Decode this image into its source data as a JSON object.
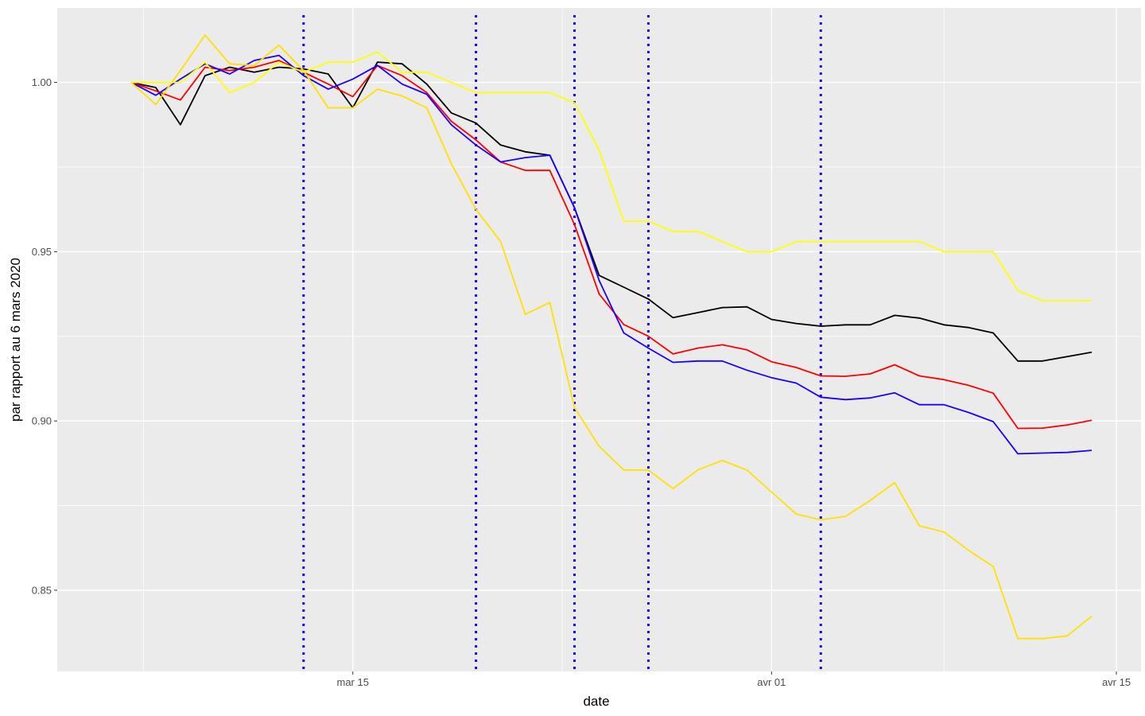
{
  "chart_data": {
    "type": "line",
    "title": "",
    "xlabel": "date",
    "ylabel": "par rapport au 6 mars 2020",
    "x_start": "2020-03-06",
    "xlim": [
      "2020-03-03",
      "2020-04-16"
    ],
    "ylim": [
      0.826,
      1.022
    ],
    "x_ticks": [
      {
        "date": "2020-03-15",
        "label": "mar 15"
      },
      {
        "date": "2020-04-01",
        "label": "avr 01"
      },
      {
        "date": "2020-04-15",
        "label": "avr 15"
      }
    ],
    "y_ticks": [
      {
        "value": 0.85,
        "label": "0.85"
      },
      {
        "value": 0.9,
        "label": "0.90"
      },
      {
        "value": 0.95,
        "label": "0.95"
      },
      {
        "value": 1.0,
        "label": "1.00"
      }
    ],
    "grid": true,
    "legend": "none",
    "background_color": "#ebebeb",
    "grid_color": "#ffffff",
    "vlines": {
      "color": "#1a00ff",
      "style": "dotted",
      "dates": [
        "2020-03-13",
        "2020-03-20",
        "2020-03-24",
        "2020-03-27",
        "2020-04-03"
      ]
    },
    "series": [
      {
        "color": "#000000",
        "x": [
          "2020-03-06",
          "2020-03-07",
          "2020-03-08",
          "2020-03-09",
          "2020-03-10",
          "2020-03-11",
          "2020-03-12",
          "2020-03-13",
          "2020-03-14",
          "2020-03-15",
          "2020-03-16",
          "2020-03-17",
          "2020-03-18",
          "2020-03-19",
          "2020-03-20",
          "2020-03-21",
          "2020-03-22",
          "2020-03-23",
          "2020-03-24",
          "2020-03-25",
          "2020-03-26",
          "2020-03-27",
          "2020-03-28",
          "2020-03-29",
          "2020-03-30",
          "2020-03-31",
          "2020-04-01",
          "2020-04-02",
          "2020-04-03",
          "2020-04-04",
          "2020-04-05",
          "2020-04-06",
          "2020-04-07",
          "2020-04-08",
          "2020-04-09",
          "2020-04-10",
          "2020-04-11",
          "2020-04-12",
          "2020-04-13",
          "2020-04-14"
        ],
        "values": [
          1.0,
          0.9985,
          0.9875,
          1.002,
          1.0045,
          1.003,
          1.0045,
          1.004,
          1.0025,
          0.9925,
          1.006,
          1.0055,
          0.9995,
          0.991,
          0.988,
          0.9815,
          0.9795,
          0.9785,
          0.963,
          0.943,
          0.9395,
          0.936,
          0.9305,
          0.932,
          0.9335,
          0.9337,
          0.93,
          0.9288,
          0.928,
          0.9284,
          0.9284,
          0.9312,
          0.9304,
          0.9284,
          0.9276,
          0.926,
          0.9177,
          0.9177,
          0.919,
          0.9203
        ]
      },
      {
        "color": "#ff0000",
        "x": [
          "2020-03-06",
          "2020-03-07",
          "2020-03-08",
          "2020-03-09",
          "2020-03-10",
          "2020-03-11",
          "2020-03-12",
          "2020-03-13",
          "2020-03-14",
          "2020-03-15",
          "2020-03-16",
          "2020-03-17",
          "2020-03-18",
          "2020-03-19",
          "2020-03-20",
          "2020-03-21",
          "2020-03-22",
          "2020-03-23",
          "2020-03-24",
          "2020-03-25",
          "2020-03-26",
          "2020-03-27",
          "2020-03-28",
          "2020-03-29",
          "2020-03-30",
          "2020-03-31",
          "2020-04-01",
          "2020-04-02",
          "2020-04-03",
          "2020-04-04",
          "2020-04-05",
          "2020-04-06",
          "2020-04-07",
          "2020-04-08",
          "2020-04-09",
          "2020-04-10",
          "2020-04-11",
          "2020-04-12",
          "2020-04-13",
          "2020-04-14"
        ],
        "values": [
          1.0,
          0.9975,
          0.9948,
          1.0045,
          1.0035,
          1.0045,
          1.0065,
          1.003,
          0.9995,
          0.9958,
          1.005,
          1.002,
          0.997,
          0.9885,
          0.983,
          0.9765,
          0.974,
          0.974,
          0.958,
          0.9375,
          0.9285,
          0.925,
          0.9198,
          0.9215,
          0.9225,
          0.921,
          0.9175,
          0.9158,
          0.9133,
          0.9132,
          0.9139,
          0.9166,
          0.9133,
          0.9122,
          0.9105,
          0.9082,
          0.8978,
          0.8979,
          0.8988,
          0.9002
        ]
      },
      {
        "color": "#1a00ff",
        "x": [
          "2020-03-06",
          "2020-03-07",
          "2020-03-08",
          "2020-03-09",
          "2020-03-10",
          "2020-03-11",
          "2020-03-12",
          "2020-03-13",
          "2020-03-14",
          "2020-03-15",
          "2020-03-16",
          "2020-03-17",
          "2020-03-18",
          "2020-03-19",
          "2020-03-20",
          "2020-03-21",
          "2020-03-22",
          "2020-03-23",
          "2020-03-24",
          "2020-03-25",
          "2020-03-26",
          "2020-03-27",
          "2020-03-28",
          "2020-03-29",
          "2020-03-30",
          "2020-03-31",
          "2020-04-01",
          "2020-04-02",
          "2020-04-03",
          "2020-04-04",
          "2020-04-05",
          "2020-04-06",
          "2020-04-07",
          "2020-04-08",
          "2020-04-09",
          "2020-04-10",
          "2020-04-11",
          "2020-04-12",
          "2020-04-13",
          "2020-04-14"
        ],
        "values": [
          1.0,
          0.9962,
          1.001,
          1.0055,
          1.0025,
          1.0065,
          1.008,
          1.002,
          0.998,
          1.001,
          1.005,
          0.9995,
          0.9965,
          0.9875,
          0.9815,
          0.9765,
          0.9778,
          0.9785,
          0.963,
          0.9415,
          0.926,
          0.9215,
          0.9173,
          0.9177,
          0.9177,
          0.915,
          0.9128,
          0.9112,
          0.907,
          0.9063,
          0.9068,
          0.9083,
          0.9048,
          0.9048,
          0.9025,
          0.8998,
          0.8903,
          0.8905,
          0.8907,
          0.8913
        ]
      },
      {
        "color": "#ffe100",
        "x": [
          "2020-03-06",
          "2020-03-07",
          "2020-03-08",
          "2020-03-09",
          "2020-03-10",
          "2020-03-11",
          "2020-03-12",
          "2020-03-13",
          "2020-03-14",
          "2020-03-15",
          "2020-03-16",
          "2020-03-17",
          "2020-03-18",
          "2020-03-19",
          "2020-03-20",
          "2020-03-21",
          "2020-03-22",
          "2020-03-23",
          "2020-03-24",
          "2020-03-25",
          "2020-03-26",
          "2020-03-27",
          "2020-03-28",
          "2020-03-29",
          "2020-03-30",
          "2020-03-31",
          "2020-04-01",
          "2020-04-02",
          "2020-04-03",
          "2020-04-04",
          "2020-04-05",
          "2020-04-06",
          "2020-04-07",
          "2020-04-08",
          "2020-04-09",
          "2020-04-10",
          "2020-04-11",
          "2020-04-12",
          "2020-04-13",
          "2020-04-14"
        ],
        "values": [
          1.0,
          0.9935,
          1.0035,
          1.014,
          1.0055,
          1.005,
          1.011,
          1.0035,
          0.9925,
          0.9925,
          0.998,
          0.996,
          0.9925,
          0.976,
          0.9625,
          0.953,
          0.9315,
          0.935,
          0.904,
          0.8925,
          0.8855,
          0.8855,
          0.88,
          0.8855,
          0.8883,
          0.8855,
          0.879,
          0.8725,
          0.8708,
          0.8718,
          0.8765,
          0.8818,
          0.869,
          0.8672,
          0.8618,
          0.857,
          0.8357,
          0.8357,
          0.8365,
          0.8423
        ]
      },
      {
        "color": "#ffff00",
        "x": [
          "2020-03-06",
          "2020-03-07",
          "2020-03-08",
          "2020-03-09",
          "2020-03-10",
          "2020-03-11",
          "2020-03-12",
          "2020-03-13",
          "2020-03-14",
          "2020-03-15",
          "2020-03-16",
          "2020-03-17",
          "2020-03-18",
          "2020-03-19",
          "2020-03-20",
          "2020-03-21",
          "2020-03-22",
          "2020-03-23",
          "2020-03-24",
          "2020-03-25",
          "2020-03-26",
          "2020-03-27",
          "2020-03-28",
          "2020-03-29",
          "2020-03-30",
          "2020-03-31",
          "2020-04-01",
          "2020-04-02",
          "2020-04-03",
          "2020-04-04",
          "2020-04-05",
          "2020-04-06",
          "2020-04-07",
          "2020-04-08",
          "2020-04-09",
          "2020-04-10",
          "2020-04-11",
          "2020-04-12",
          "2020-04-13",
          "2020-04-14"
        ],
        "values": [
          1.0,
          1.0,
          1.0,
          1.006,
          0.997,
          1.0,
          1.006,
          1.003,
          1.006,
          1.006,
          1.009,
          1.003,
          1.003,
          1.0,
          0.997,
          0.997,
          0.997,
          0.997,
          0.994,
          0.98,
          0.959,
          0.959,
          0.956,
          0.956,
          0.953,
          0.95,
          0.95,
          0.953,
          0.953,
          0.953,
          0.953,
          0.953,
          0.953,
          0.95,
          0.95,
          0.95,
          0.9385,
          0.9355,
          0.9355,
          0.9355
        ]
      }
    ]
  }
}
